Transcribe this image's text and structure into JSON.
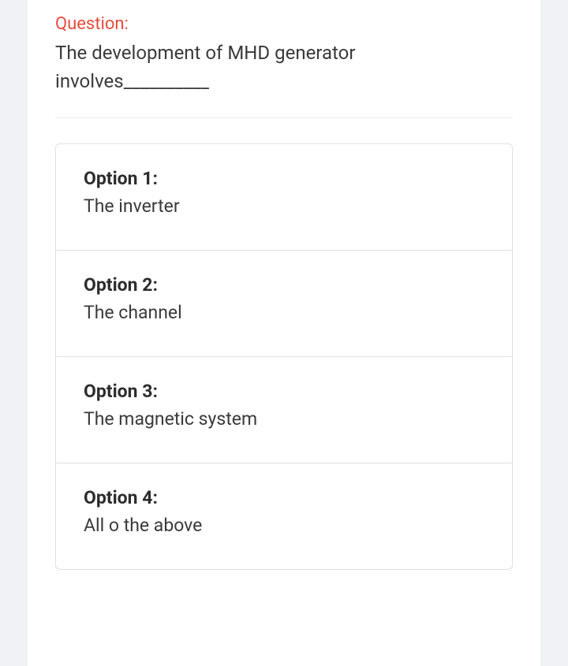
{
  "question": {
    "label": "Question:",
    "text": "The development of MHD generator involves__________"
  },
  "options": [
    {
      "label": "Option 1:",
      "text": "The inverter"
    },
    {
      "label": "Option 2:",
      "text": "The channel"
    },
    {
      "label": "Option 3:",
      "text": "The magnetic system"
    },
    {
      "label": "Option 4:",
      "text": "All o the above"
    }
  ],
  "colors": {
    "question_label": "#e74c3c",
    "text": "#3a3a3a",
    "background": "#f0f2f5",
    "card": "#ffffff",
    "border": "#e0e0e0"
  }
}
